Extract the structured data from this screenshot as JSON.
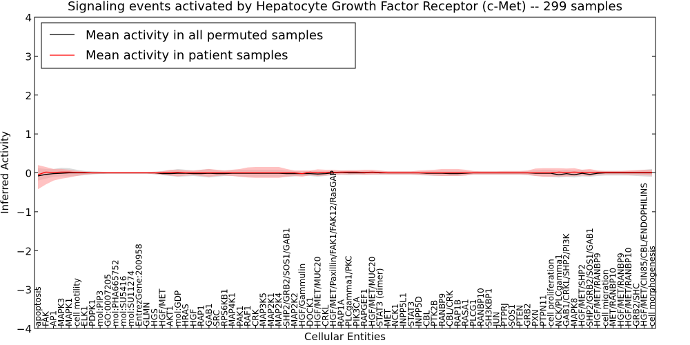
{
  "chart_data": {
    "type": "line",
    "title": "Signaling events activated by Hepatocyte Growth Factor Receptor (c-Met) -- 299 samples",
    "xlabel": "Cellular Entities",
    "ylabel": "Inferred Activity",
    "ylim": [
      -4,
      4
    ],
    "yticks": [
      "4",
      "3",
      "2",
      "1",
      "0",
      "−1",
      "−2",
      "−3",
      "−4"
    ],
    "grid": false,
    "legend_position": "top-left",
    "categories": [
      "apoptosis",
      "FAK",
      "AP1",
      "MAPK3",
      "MAPK1",
      "cell motility",
      "ELK1",
      "PDPK1",
      "mol:PIP3",
      "GO:0007205",
      "mol:PHA665752",
      "mol:SU5416",
      "mol:SU11274",
      "EntrezGene:200958",
      "GLMN",
      "HGS",
      "HGF/MET",
      "AKT1",
      "mol:GDP",
      "HRAS",
      "HGF",
      "RAP1",
      "GAB1",
      "SRC",
      "RPS6KB1",
      "MAP4K1",
      "PAK1",
      "RAF1",
      "CRK",
      "MAP3K5",
      "MAP2K1",
      "MAP2K4",
      "SHP2/GRB2/SOS1/GAB1",
      "MAP2K2",
      "HGF/Gammulin",
      "DOCK1",
      "HGF/MET/MUC20",
      "CRKL",
      "HGF/MET/Paxillin/FAK1/FAK12/RasGAP",
      "RAP1A",
      "PLCgamma1/PKC",
      "PIK3CA",
      "RAPGEF1",
      "HGF/MET/MUC20",
      "STAT3 (dimer)",
      "MET",
      "NCK1",
      "INPP5L1",
      "STAT3",
      "INPP5D",
      "CBL",
      "PTK2B",
      "RANBP9",
      "CBL/CRK",
      "RAP1B",
      "RASA1",
      "PLCG1",
      "RANBP10",
      "SH3KBP1",
      "JUN",
      "PTPRJ",
      "SOS1",
      "PTEN",
      "GRB2",
      "PXN",
      "PTPN11",
      "cell proliferation",
      "NCK/PLCgamma1",
      "GAB1/CRKL/SHP2/PI3K",
      "MAPK8",
      "HGF/MET/SHP2",
      "SHP2/GRB2/SOS1/GAB1",
      "HGF/MET/RANBP9",
      "cell migration",
      "MET/RANBP10",
      "HGF/MET/RANBP9",
      "HGF/MET/RANBP10",
      "GRB2/SHC",
      "HGF/MET/CIN85/CBL/ENDOPHILINS",
      "cell morphogenesis"
    ],
    "series": [
      {
        "name": "Mean activity in all permuted samples",
        "color": "#000000",
        "values": [
          -0.08,
          -0.04,
          -0.02,
          -0.01,
          0,
          0,
          0,
          0,
          0,
          0,
          0,
          0,
          0,
          0,
          0,
          0,
          -0.02,
          -0.02,
          -0.01,
          -0.01,
          -0.02,
          -0.02,
          -0.01,
          -0.02,
          -0.02,
          -0.01,
          -0.01,
          -0.01,
          -0.01,
          -0.01,
          -0.01,
          -0.01,
          -0.02,
          -0.02,
          -0.02,
          -0.02,
          -0.03,
          -0.02,
          0,
          0.01,
          0,
          0,
          0,
          0.01,
          0,
          0,
          0,
          0,
          0,
          0,
          -0.01,
          -0.01,
          -0.01,
          -0.02,
          -0.02,
          -0.01,
          0,
          0,
          0,
          0,
          0,
          0,
          0,
          0,
          -0.01,
          -0.01,
          -0.01,
          -0.05,
          -0.02,
          -0.05,
          -0.01,
          -0.04,
          -0.01,
          0,
          0,
          0,
          0,
          0,
          0,
          0
        ]
      },
      {
        "name": "Mean activity in patient samples",
        "color": "#ff0000",
        "values": [
          -0.05,
          0.02,
          0.01,
          0.02,
          0.02,
          0.01,
          0.01,
          0,
          0,
          0,
          0,
          0,
          0,
          0,
          0,
          0,
          0,
          0.01,
          0.01,
          0,
          0,
          0,
          0,
          0,
          0,
          0,
          0,
          0,
          0,
          0,
          0,
          0,
          0,
          0,
          -0.02,
          0.02,
          0,
          0.01,
          0.01,
          0.02,
          0.02,
          0.02,
          0.01,
          0.02,
          0.01,
          0,
          0,
          0,
          0,
          0,
          0,
          0,
          0,
          0,
          0,
          0,
          0,
          0,
          0,
          0,
          0,
          0,
          0,
          0,
          0,
          0,
          0,
          0.02,
          0.01,
          0.02,
          0.01,
          0.01,
          0.01,
          0.01,
          0.01,
          0.01,
          0.01,
          0.01,
          0.01,
          0.01
        ]
      }
    ],
    "permuted_band": {
      "color": "#cccccc",
      "upper": [
        0.12,
        0.1,
        0.1,
        0.13,
        0.12,
        0.08,
        0.05,
        0.04,
        0.03,
        0.02,
        0.02,
        0.02,
        0.02,
        0.02,
        0.02,
        0.03,
        0.05,
        0.07,
        0.1,
        0.08,
        0.06,
        0.08,
        0.1,
        0.07,
        0.06,
        0.07,
        0.08,
        0.08,
        0.08,
        0.08,
        0.08,
        0.08,
        0.06,
        0.05,
        0.05,
        0.05,
        0.05,
        0.04,
        0.05,
        0.06,
        0.05,
        0.04,
        0.05,
        0.05,
        0.04,
        0.04,
        0.04,
        0.04,
        0.04,
        0.04,
        0.05,
        0.05,
        0.06,
        0.06,
        0.06,
        0.05,
        0.04,
        0.04,
        0.04,
        0.04,
        0.04,
        0.04,
        0.04,
        0.05,
        0.07,
        0.08,
        0.08,
        0.06,
        0.08,
        0.06,
        0.08,
        0.06,
        0.05,
        0.05,
        0.05,
        0.05,
        0.05,
        0.06,
        0.08,
        0.1
      ],
      "lower": [
        -0.2,
        -0.15,
        -0.1,
        -0.09,
        -0.09,
        -0.08,
        -0.06,
        -0.04,
        -0.03,
        -0.02,
        -0.02,
        -0.02,
        -0.02,
        -0.02,
        -0.02,
        -0.04,
        -0.06,
        -0.08,
        -0.1,
        -0.09,
        -0.08,
        -0.1,
        -0.12,
        -0.1,
        -0.08,
        -0.08,
        -0.1,
        -0.1,
        -0.1,
        -0.1,
        -0.1,
        -0.1,
        -0.1,
        -0.09,
        -0.08,
        -0.08,
        -0.1,
        -0.08,
        -0.06,
        -0.05,
        -0.06,
        -0.05,
        -0.05,
        -0.05,
        -0.05,
        -0.05,
        -0.05,
        -0.05,
        -0.05,
        -0.06,
        -0.07,
        -0.08,
        -0.08,
        -0.08,
        -0.08,
        -0.07,
        -0.05,
        -0.05,
        -0.05,
        -0.05,
        -0.05,
        -0.05,
        -0.05,
        -0.06,
        -0.08,
        -0.09,
        -0.1,
        -0.12,
        -0.1,
        -0.12,
        -0.09,
        -0.1,
        -0.08,
        -0.07,
        -0.07,
        -0.07,
        -0.07,
        -0.08,
        -0.09,
        -0.1
      ]
    },
    "patient_band": {
      "color": "#ff9999",
      "upper": [
        0.2,
        0.15,
        0.1,
        0.1,
        0.08,
        0.05,
        0.03,
        0.02,
        0.02,
        0.02,
        0.02,
        0.02,
        0.02,
        0.02,
        0.02,
        0.02,
        0.04,
        0.08,
        0.08,
        0.06,
        0.06,
        0.08,
        0.1,
        0.08,
        0.06,
        0.08,
        0.1,
        0.14,
        0.15,
        0.15,
        0.15,
        0.15,
        0.1,
        0.06,
        0.06,
        0.06,
        0.09,
        0.08,
        0.08,
        0.06,
        0.07,
        0.07,
        0.08,
        0.08,
        0.06,
        0.04,
        0.04,
        0.04,
        0.04,
        0.06,
        0.07,
        0.08,
        0.1,
        0.1,
        0.1,
        0.08,
        0.05,
        0.04,
        0.04,
        0.04,
        0.05,
        0.05,
        0.05,
        0.06,
        0.11,
        0.12,
        0.12,
        0.12,
        0.11,
        0.12,
        0.08,
        0.1,
        0.06,
        0.05,
        0.05,
        0.05,
        0.06,
        0.07,
        0.08,
        0.08
      ],
      "lower": [
        -0.42,
        -0.3,
        -0.2,
        -0.15,
        -0.12,
        -0.08,
        -0.05,
        -0.03,
        -0.02,
        -0.02,
        -0.02,
        -0.02,
        -0.02,
        -0.02,
        -0.02,
        -0.03,
        -0.05,
        -0.07,
        -0.09,
        -0.07,
        -0.06,
        -0.08,
        -0.1,
        -0.08,
        -0.07,
        -0.08,
        -0.1,
        -0.12,
        -0.13,
        -0.13,
        -0.13,
        -0.13,
        -0.1,
        -0.08,
        -0.1,
        -0.06,
        -0.08,
        -0.07,
        -0.05,
        -0.04,
        -0.04,
        -0.04,
        -0.05,
        -0.04,
        -0.04,
        -0.04,
        -0.04,
        -0.04,
        -0.04,
        -0.05,
        -0.06,
        -0.07,
        -0.08,
        -0.08,
        -0.08,
        -0.07,
        -0.04,
        -0.04,
        -0.04,
        -0.04,
        -0.04,
        -0.04,
        -0.04,
        -0.05,
        -0.08,
        -0.1,
        -0.1,
        -0.09,
        -0.09,
        -0.08,
        -0.07,
        -0.08,
        -0.05,
        -0.04,
        -0.04,
        -0.04,
        -0.05,
        -0.05,
        -0.06,
        -0.07
      ]
    }
  }
}
